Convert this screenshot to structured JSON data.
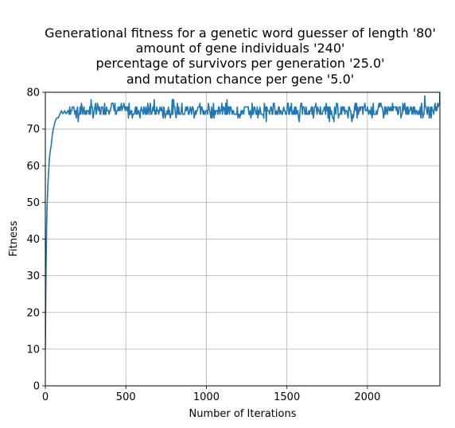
{
  "chart_data": {
    "type": "line",
    "title_lines": [
      "Generational fitness for a genetic word guesser of length '80'",
      "amount of gene individuals '240'",
      "percentage of survivors per generation '25.0'",
      "and mutation chance per gene '5.0'"
    ],
    "xlabel": "Number of Iterations",
    "ylabel": "Fitness",
    "xlim": [
      0,
      2450
    ],
    "ylim": [
      0,
      80
    ],
    "xticks": [
      0,
      500,
      1000,
      1500,
      2000
    ],
    "yticks": [
      0,
      10,
      20,
      30,
      40,
      50,
      60,
      70,
      80
    ],
    "grid": true,
    "line_color": "#1f77b4",
    "series": [
      {
        "x": [
          0,
          5,
          10,
          15,
          20,
          25,
          30,
          35,
          40,
          45,
          50,
          55,
          60,
          70,
          80,
          90,
          100,
          110,
          120,
          130,
          140,
          150,
          160,
          170,
          180,
          200,
          250,
          300,
          350,
          400,
          450,
          500,
          600,
          700,
          800,
          900,
          1000,
          1100,
          1200,
          1300,
          1400,
          1500,
          1600,
          1700,
          1800,
          1900,
          2000,
          2100,
          2200,
          2300,
          2400,
          2450
        ],
        "y": [
          10,
          37,
          48,
          54,
          58,
          62,
          64,
          65,
          67,
          69,
          70,
          71,
          72,
          73,
          73,
          74,
          75,
          74,
          75,
          74,
          75,
          76,
          75,
          76,
          75,
          75,
          75,
          75,
          75,
          76,
          75,
          75,
          75,
          75,
          75,
          75,
          75,
          75,
          75,
          75,
          75,
          75,
          75,
          75,
          75,
          75,
          75,
          75,
          75,
          75,
          75,
          77
        ],
        "fluctuation_band": [
          73,
          78
        ]
      }
    ]
  }
}
